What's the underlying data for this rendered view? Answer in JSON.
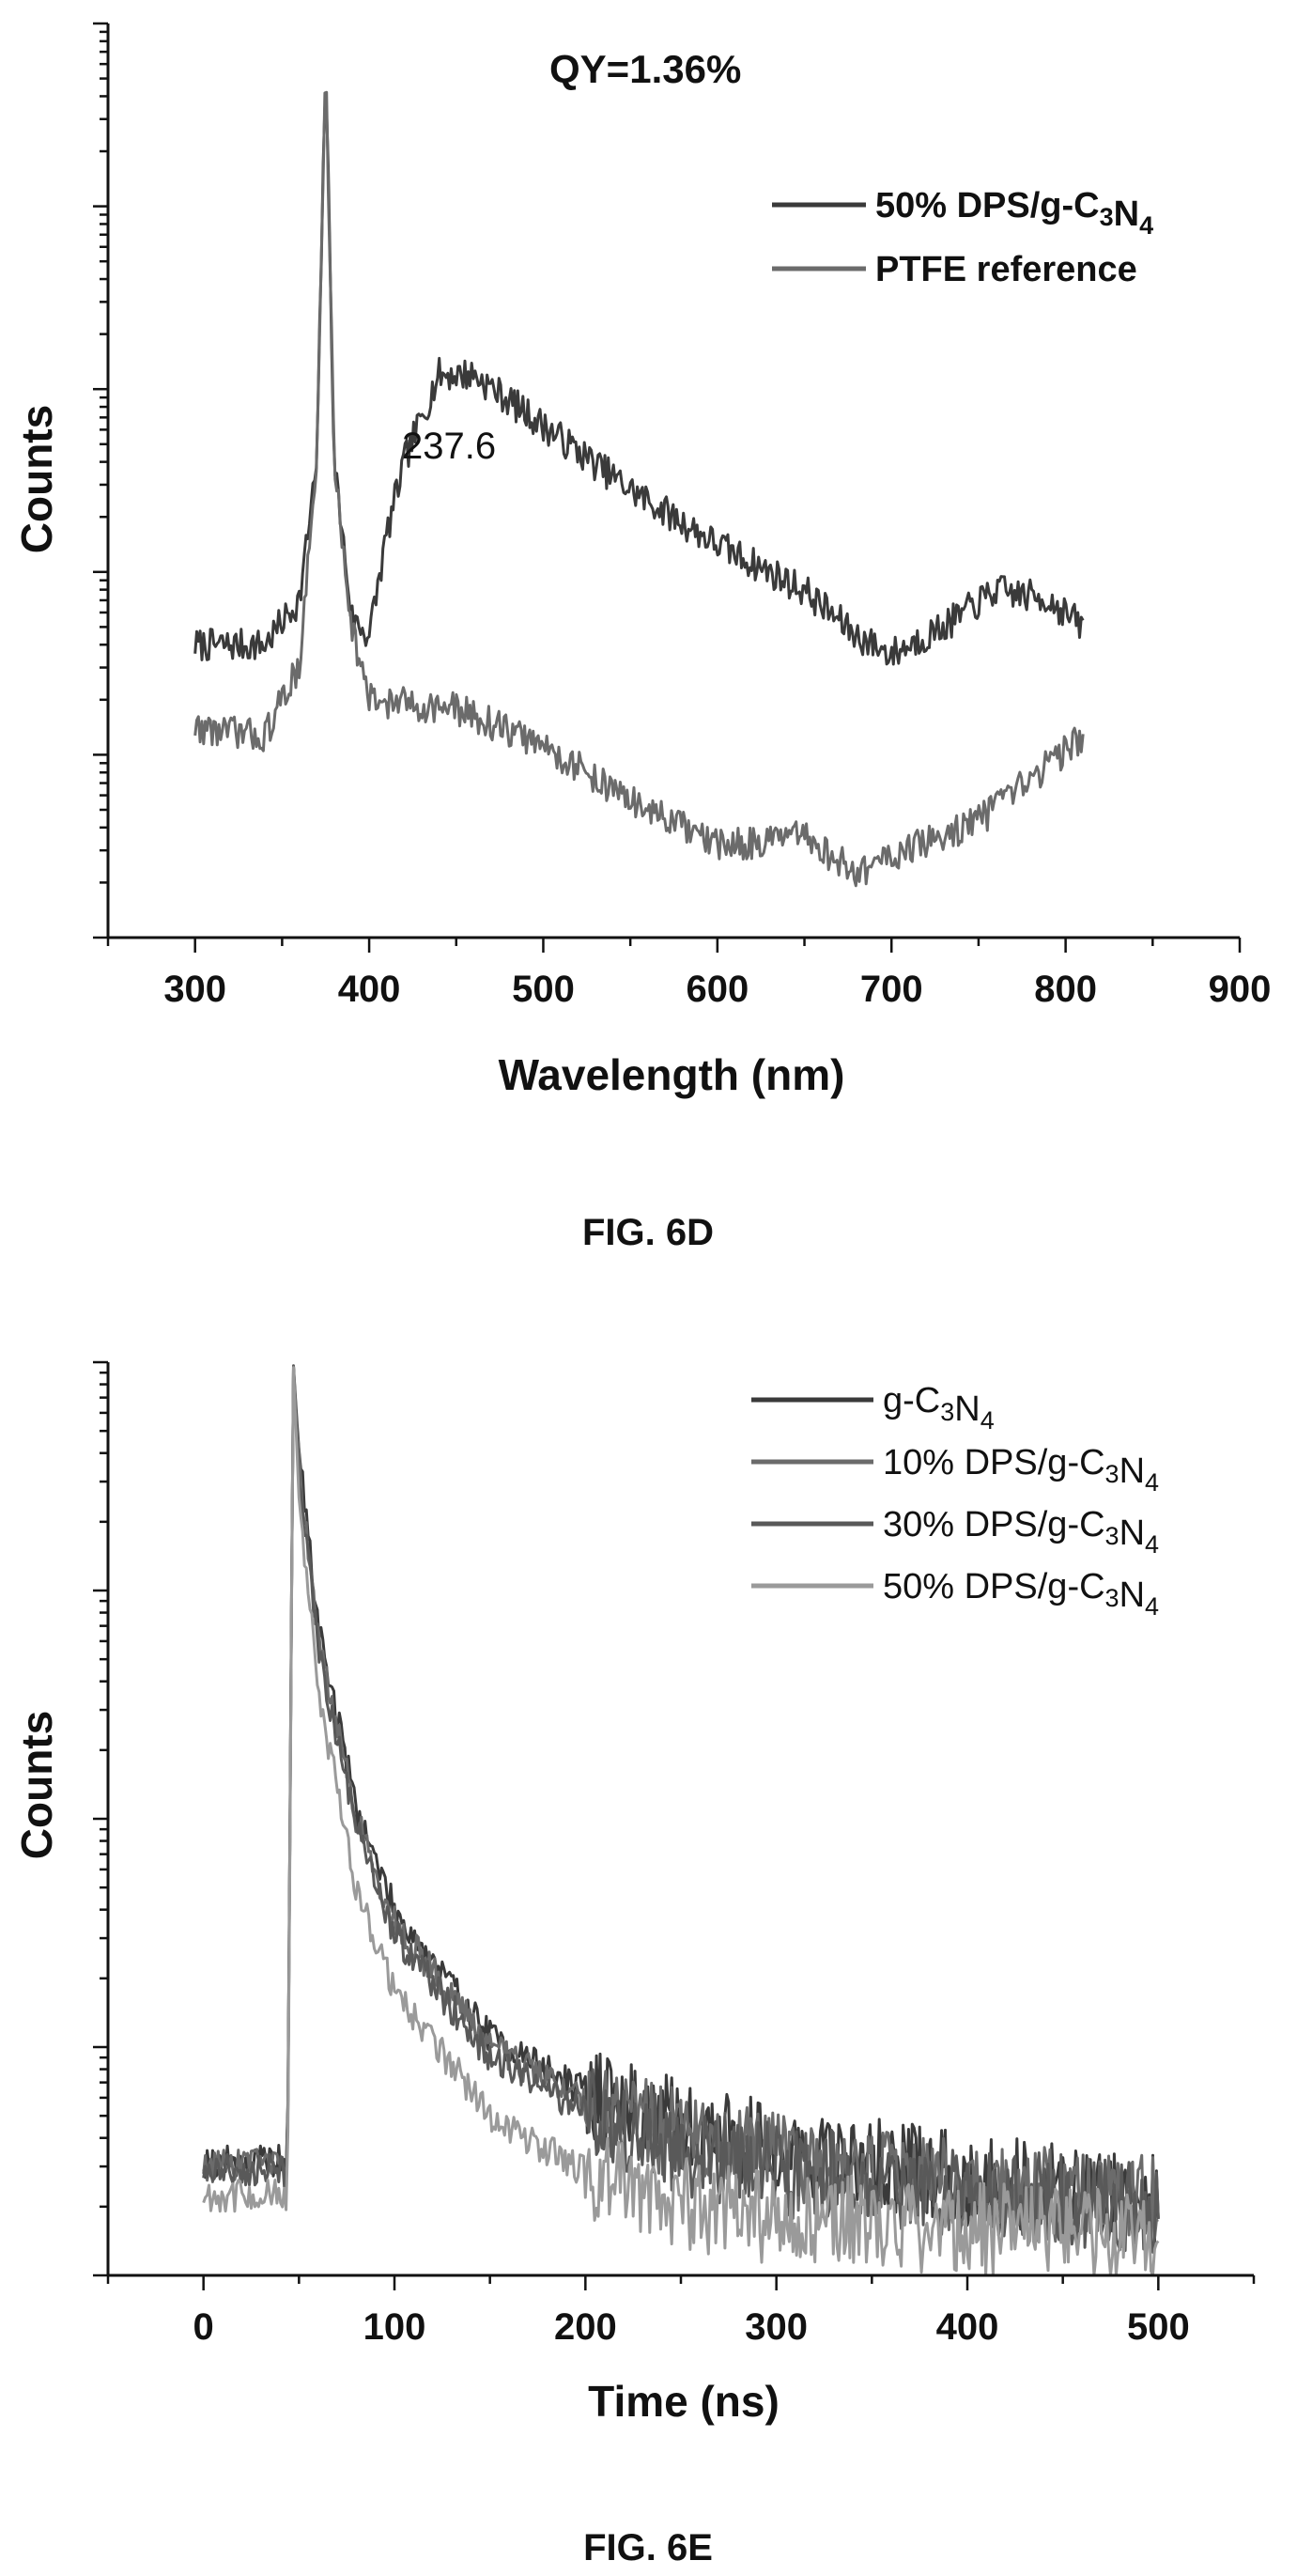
{
  "figures": [
    {
      "caption": "FIG. 6D",
      "annotation": "QY=1.36%",
      "peak_label": "237.6"
    },
    {
      "caption": "FIG. 6E"
    }
  ],
  "colors": {
    "dark_gray": "#3a3a3a",
    "mid_gray": "#6b6b6b",
    "gray": "#595959",
    "light_gray": "#9a9a9a",
    "axis": "#111111"
  },
  "chart_data": [
    {
      "type": "line",
      "xlabel": "Wavelength (nm)",
      "ylabel": "Counts",
      "xlim": [
        250,
        900
      ],
      "x_ticks": [
        300,
        400,
        500,
        600,
        700,
        800,
        900
      ],
      "y_scale": "log",
      "y_decades": 5,
      "y_tick_labels": "none",
      "legend_position": "top-right",
      "annotations": [
        {
          "text": "QY=1.36%",
          "position": "top-center"
        },
        {
          "text": "237.6",
          "x": 440,
          "position": "above emission maximum"
        }
      ],
      "series": [
        {
          "name_parts": [
            [
              "50% DPS/g-C",
              false
            ],
            [
              "3",
              true
            ],
            [
              "N",
              false
            ],
            [
              "4",
              true
            ]
          ],
          "color": "#3a3a3a",
          "x": [
            300,
            340,
            360,
            370,
            375,
            380,
            390,
            400,
            410,
            420,
            440,
            460,
            500,
            550,
            600,
            650,
            680,
            700,
            730,
            760,
            790,
            810
          ],
          "y_decade": [
            1.6,
            1.6,
            1.85,
            2.6,
            4.8,
            2.6,
            1.75,
            1.65,
            2.2,
            2.6,
            3.08,
            3.08,
            2.8,
            2.45,
            2.15,
            1.9,
            1.65,
            1.55,
            1.7,
            1.9,
            1.85,
            1.7
          ]
        },
        {
          "name_parts": [
            [
              "PTFE reference",
              false
            ]
          ],
          "color": "#6b6b6b",
          "x": [
            300,
            340,
            360,
            370,
            375,
            380,
            390,
            400,
            450,
            500,
            550,
            600,
            650,
            680,
            700,
            730,
            760,
            790,
            810
          ],
          "y_decade": [
            1.15,
            1.1,
            1.5,
            2.6,
            4.8,
            2.6,
            1.7,
            1.3,
            1.25,
            1.05,
            0.75,
            0.5,
            0.55,
            0.35,
            0.45,
            0.55,
            0.7,
            0.95,
            1.1
          ]
        }
      ]
    },
    {
      "type": "line",
      "xlabel": "Time (ns)",
      "ylabel": "Counts",
      "xlim": [
        -50,
        550
      ],
      "x_ticks": [
        0,
        100,
        200,
        300,
        400,
        500
      ],
      "y_scale": "log",
      "y_decades": 4,
      "y_tick_labels": "none",
      "legend_position": "top-right",
      "series": [
        {
          "name_parts": [
            [
              "g-C",
              false
            ],
            [
              "3",
              true
            ],
            [
              "N",
              false
            ],
            [
              "4",
              true
            ]
          ],
          "color": "#3a3a3a",
          "x": [
            0,
            44,
            47,
            50,
            60,
            80,
            100,
            150,
            200,
            250,
            300,
            400,
            500
          ],
          "y_decade": [
            0.5,
            0.5,
            4.0,
            3.6,
            2.85,
            2.05,
            1.6,
            1.05,
            0.8,
            0.65,
            0.55,
            0.42,
            0.35
          ]
        },
        {
          "name_parts": [
            [
              "10% DPS/g-C",
              false
            ],
            [
              "3",
              true
            ],
            [
              "N",
              false
            ],
            [
              "4",
              true
            ]
          ],
          "color": "#6b6b6b",
          "x": [
            0,
            44,
            47,
            50,
            60,
            80,
            100,
            150,
            200,
            250,
            300,
            400,
            500
          ],
          "y_decade": [
            0.48,
            0.48,
            4.0,
            3.55,
            2.8,
            2.0,
            1.55,
            1.0,
            0.76,
            0.6,
            0.5,
            0.38,
            0.32
          ]
        },
        {
          "name_parts": [
            [
              "30% DPS/g-C",
              false
            ],
            [
              "3",
              true
            ],
            [
              "N",
              false
            ],
            [
              "4",
              true
            ]
          ],
          "color": "#595959",
          "x": [
            0,
            44,
            47,
            50,
            60,
            80,
            100,
            150,
            200,
            250,
            300,
            400,
            500
          ],
          "y_decade": [
            0.46,
            0.46,
            4.0,
            3.5,
            2.75,
            1.95,
            1.5,
            0.95,
            0.72,
            0.56,
            0.46,
            0.35,
            0.3
          ]
        },
        {
          "name_parts": [
            [
              "50% DPS/g-C",
              false
            ],
            [
              "3",
              true
            ],
            [
              "N",
              false
            ],
            [
              "4",
              true
            ]
          ],
          "color": "#9a9a9a",
          "x": [
            0,
            44,
            47,
            50,
            60,
            80,
            100,
            150,
            200,
            250,
            300,
            400,
            500
          ],
          "y_decade": [
            0.35,
            0.35,
            4.0,
            3.4,
            2.55,
            1.7,
            1.25,
            0.7,
            0.45,
            0.32,
            0.25,
            0.2,
            0.18
          ]
        }
      ]
    }
  ]
}
